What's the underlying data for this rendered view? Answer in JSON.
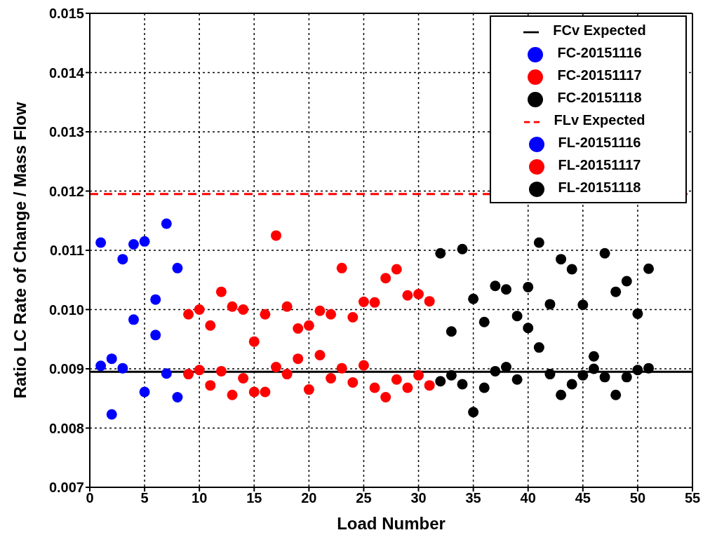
{
  "chart_data": {
    "type": "scatter",
    "xlabel": "Load Number",
    "ylabel": "Ratio LC Rate of Change / Mass Flow",
    "xlim": [
      0,
      55
    ],
    "xticks": [
      0,
      5,
      10,
      15,
      20,
      25,
      30,
      35,
      40,
      45,
      50,
      55
    ],
    "ylim": [
      0.007,
      0.015
    ],
    "yticks": [
      0.007,
      0.008,
      0.009,
      {
        "value": 0.01,
        "label": "0.010"
      },
      0.011,
      0.012,
      0.013,
      0.014,
      0.015
    ],
    "grid": true,
    "legend": "top right",
    "marker": "circle",
    "series": [
      {
        "name": "FCv Expected",
        "type": "line",
        "marker": "none",
        "color": "#000000",
        "line_style": "solid",
        "x": [
          0,
          55
        ],
        "values": [
          0.00895,
          0.00895
        ]
      },
      {
        "name": "FC-20151116",
        "color": "#0000ff",
        "x": [
          1,
          2,
          3,
          4,
          5,
          6,
          7,
          8
        ],
        "values": [
          0.00905,
          0.00823,
          0.00901,
          0.00983,
          0.00861,
          0.00957,
          0.00892,
          0.00852
        ]
      },
      {
        "name": "FC-20151117",
        "color": "#ff0000",
        "x": [
          9,
          10,
          11,
          12,
          13,
          14,
          15,
          16,
          17,
          18,
          19,
          20,
          21,
          22,
          23,
          24,
          25,
          26,
          27,
          28,
          29,
          30,
          31
        ],
        "values": [
          0.00891,
          0.00898,
          0.00872,
          0.00896,
          0.00856,
          0.00884,
          0.00861,
          0.00861,
          0.00903,
          0.00891,
          0.00917,
          0.00865,
          0.00923,
          0.00884,
          0.00901,
          0.00877,
          0.00906,
          0.00868,
          0.00852,
          0.00882,
          0.00868,
          0.00889,
          0.00872
        ]
      },
      {
        "name": "FC-20151118",
        "color": "#000000",
        "x": [
          32,
          33,
          34,
          35,
          36,
          37,
          38,
          39,
          40,
          41,
          42,
          43,
          44,
          45,
          46,
          47,
          48,
          49,
          50,
          51
        ],
        "values": [
          0.00879,
          0.00889,
          0.00874,
          0.00827,
          0.00868,
          0.00896,
          0.00903,
          0.00882,
          0.00969,
          0.00936,
          0.00891,
          0.00856,
          0.00874,
          0.00889,
          0.00921,
          0.00886,
          0.00856,
          0.00886,
          0.00898,
          0.00901
        ]
      },
      {
        "name": "FLv Expected",
        "type": "line",
        "marker": "none",
        "color": "#ff0000",
        "line_style": "dashed",
        "x": [
          0,
          55
        ],
        "values": [
          0.01195,
          0.01195
        ]
      },
      {
        "name": "FL-20151116",
        "color": "#0000ff",
        "x": [
          1,
          2,
          3,
          4,
          5,
          6,
          7,
          8
        ],
        "values": [
          0.01113,
          0.00917,
          0.01085,
          0.0111,
          0.01115,
          0.01017,
          0.01145,
          0.0107
        ]
      },
      {
        "name": "FL-20151117",
        "color": "#ff0000",
        "x": [
          9,
          10,
          11,
          12,
          13,
          14,
          15,
          16,
          17,
          18,
          19,
          20,
          21,
          22,
          23,
          24,
          25,
          26,
          27,
          28,
          29,
          30,
          31
        ],
        "values": [
          0.00992,
          0.01,
          0.00973,
          0.0103,
          0.01005,
          0.01,
          0.00946,
          0.00992,
          0.01125,
          0.01005,
          0.00968,
          0.00973,
          0.00998,
          0.00992,
          0.0107,
          0.00987,
          0.01013,
          0.01012,
          0.01053,
          0.01068,
          0.01024,
          0.01026,
          0.01014
        ]
      },
      {
        "name": "FL-20151118",
        "color": "#000000",
        "x": [
          32,
          33,
          34,
          35,
          36,
          37,
          38,
          39,
          40,
          41,
          42,
          43,
          44,
          45,
          46,
          47,
          48,
          49,
          50,
          51
        ],
        "values": [
          0.01095,
          0.00963,
          0.01102,
          0.01018,
          0.00979,
          0.0104,
          0.01034,
          0.00989,
          0.01038,
          0.01113,
          0.01009,
          0.01085,
          0.01068,
          0.01008,
          0.009,
          0.01095,
          0.0103,
          0.01048,
          0.00993,
          0.01069
        ]
      }
    ]
  }
}
